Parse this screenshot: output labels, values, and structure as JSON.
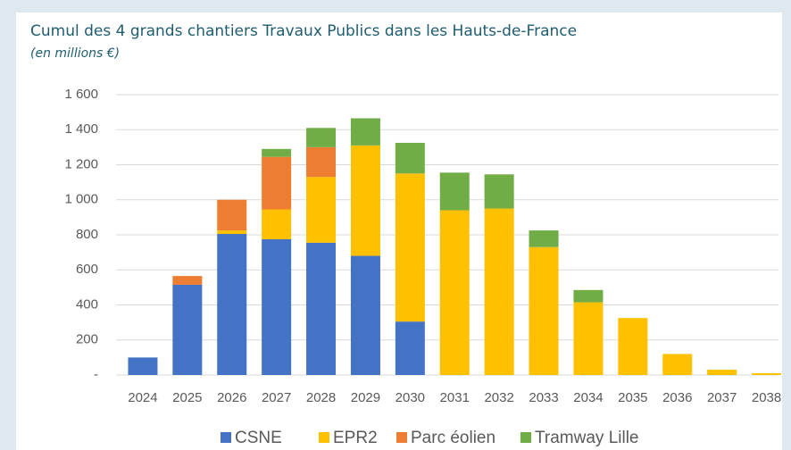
{
  "chart_data": {
    "type": "stacked-bar",
    "title": "Cumul des 4 grands chantiers Travaux Publics dans les Hauts-de-France",
    "subtitle": "(en millions €)",
    "categories": [
      "2024",
      "2025",
      "2026",
      "2027",
      "2028",
      "2029",
      "2030",
      "2031",
      "2032",
      "2033",
      "2034",
      "2035",
      "2036",
      "2037",
      "2038"
    ],
    "series": [
      {
        "name": "CSNE",
        "color": "#4472c4",
        "values": [
          100,
          515,
          805,
          775,
          755,
          680,
          305,
          0,
          0,
          0,
          0,
          0,
          0,
          0,
          0
        ]
      },
      {
        "name": "EPR2",
        "color": "#ffc000",
        "values": [
          0,
          0,
          20,
          170,
          375,
          630,
          845,
          940,
          950,
          730,
          415,
          325,
          120,
          30,
          10
        ]
      },
      {
        "name": "Parc éolien",
        "color": "#ed7d31",
        "values": [
          0,
          50,
          175,
          300,
          170,
          0,
          0,
          0,
          0,
          0,
          0,
          0,
          0,
          0,
          0
        ]
      },
      {
        "name": "Tramway Lille",
        "color": "#70ad47",
        "values": [
          0,
          0,
          0,
          45,
          110,
          155,
          175,
          215,
          195,
          95,
          70,
          0,
          0,
          0,
          0
        ]
      }
    ],
    "ylim": [
      0,
      1600
    ],
    "yticks": [
      {
        "value": 0,
        "label": "-"
      },
      200,
      400,
      600,
      800,
      {
        "value": 1000,
        "label": "1 000"
      },
      {
        "value": 1200,
        "label": "1 200"
      },
      {
        "value": 1400,
        "label": "1 400"
      },
      {
        "value": 1600,
        "label": "1 600"
      }
    ],
    "grid": true,
    "legend": "bottom"
  }
}
